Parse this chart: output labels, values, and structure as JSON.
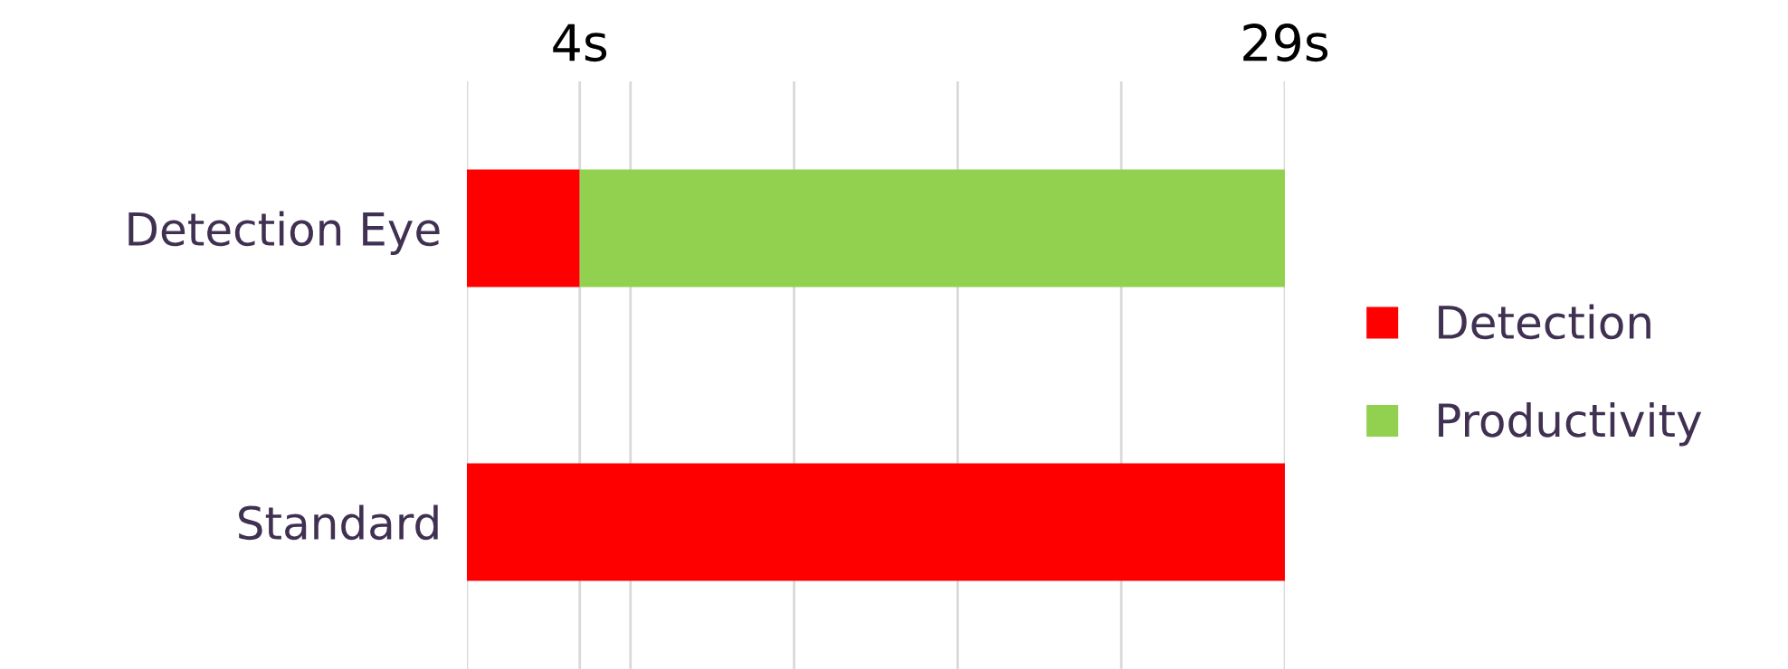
{
  "chart_data": {
    "type": "bar",
    "orientation": "horizontal",
    "stacked": true,
    "categories": [
      "Detection Eye",
      "Standard"
    ],
    "series": [
      {
        "name": "Detection",
        "color": "#ff0000",
        "values": [
          4,
          29
        ]
      },
      {
        "name": "Productivity",
        "color": "#92d050",
        "values": [
          25,
          0
        ]
      }
    ],
    "xlim": [
      0,
      29
    ],
    "xticks": [
      {
        "value": 0,
        "label": null
      },
      {
        "value": 4,
        "label": "4s"
      },
      {
        "value": 5.8,
        "label": null
      },
      {
        "value": 11.6,
        "label": null
      },
      {
        "value": 17.4,
        "label": null
      },
      {
        "value": 23.2,
        "label": null
      },
      {
        "value": 29,
        "label": "29s"
      }
    ],
    "grid": "x",
    "legend": "right"
  }
}
